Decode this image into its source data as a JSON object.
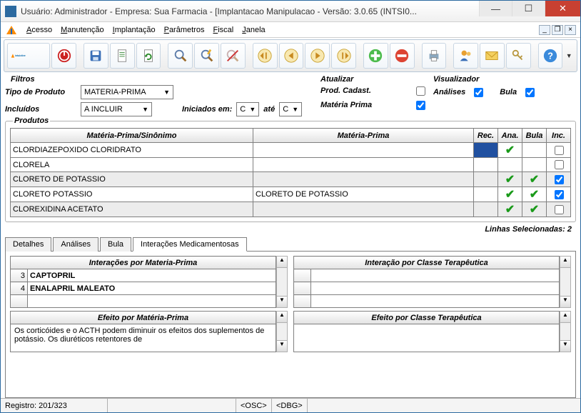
{
  "title": "Usuário: Administrador - Empresa: Sua Farmacia - [Implantacao Manipulacao - Versão: 3.0.65 (INTSI0...",
  "menu": [
    "Acesso",
    "Manutenção",
    "Implantação",
    "Parâmetros",
    "Fiscal",
    "Janela"
  ],
  "filters": {
    "section": "Filtros",
    "tipo_label": "Tipo de Produto",
    "tipo_value": "MATERIA-PRIMA",
    "incluidos_label": "Incluídos",
    "incluidos_value": "A INCLUIR",
    "iniciados_label": "Iniciados em:",
    "iniciados_from": "C",
    "iniciados_to_label": "até",
    "iniciados_to": "C"
  },
  "atualizar": {
    "section": "Atualizar",
    "prod_label": "Prod. Cadast.",
    "prod_checked": false,
    "mp_label": "Matéria Prima",
    "mp_checked": true
  },
  "visualizador": {
    "section": "Visualizador",
    "analises_label": "Análises",
    "analises_checked": true,
    "bula_label": "Bula",
    "bula_checked": true
  },
  "products": {
    "section": "Produtos",
    "headers": {
      "col1": "Matéria-Prima/Sinônimo",
      "col2": "Matéria-Prima",
      "rec": "Rec.",
      "ana": "Ana.",
      "bula": "Bula",
      "inc": "Inc."
    },
    "rows": [
      {
        "c1": "CLORDIAZEPOXIDO CLORIDRATO",
        "c2": "",
        "rec": "blue",
        "ana": true,
        "bula": false,
        "inc": false
      },
      {
        "c1": "CLORELA",
        "c2": "",
        "rec": "",
        "ana": false,
        "bula": false,
        "inc": false
      },
      {
        "c1": "CLORETO DE POTASSIO",
        "c2": "",
        "rec": "",
        "ana": true,
        "bula": true,
        "inc": true,
        "alt": true
      },
      {
        "c1": "CLORETO POTASSIO",
        "c2": "CLORETO DE POTASSIO",
        "rec": "",
        "ana": true,
        "bula": true,
        "inc": true
      },
      {
        "c1": "CLOREXIDINA ACETATO",
        "c2": "",
        "rec": "",
        "ana": true,
        "bula": true,
        "inc": false,
        "alt": true
      }
    ],
    "selected_label": "Linhas Selecionadas:",
    "selected_count": "2"
  },
  "tabs": [
    "Detalhes",
    "Análises",
    "Bula",
    "Interações Medicamentosas"
  ],
  "active_tab": 3,
  "interactions": {
    "mp_header": "Interações por Materia-Prima",
    "mp_rows": [
      {
        "n": "3",
        "v": "CAPTOPRIL"
      },
      {
        "n": "4",
        "v": "ENALAPRIL MALEATO"
      }
    ],
    "effect_mp_header": "Efeito por Matéria-Prima",
    "effect_mp_text": "Os corticóides e o ACTH podem diminuir os efeitos dos suplementos de potássio. Os diuréticos retentores de",
    "class_header": "Interação por Classe Terapêutica",
    "effect_class_header": "Efeito por Classe Terapêutica"
  },
  "status": {
    "registro": "Registro: 201/323",
    "osc": "<OSC>",
    "dbg": "<DBG>"
  },
  "colors": {
    "accent": "#2c6aa0",
    "close": "#c84031",
    "check": "#1a9a1a"
  }
}
